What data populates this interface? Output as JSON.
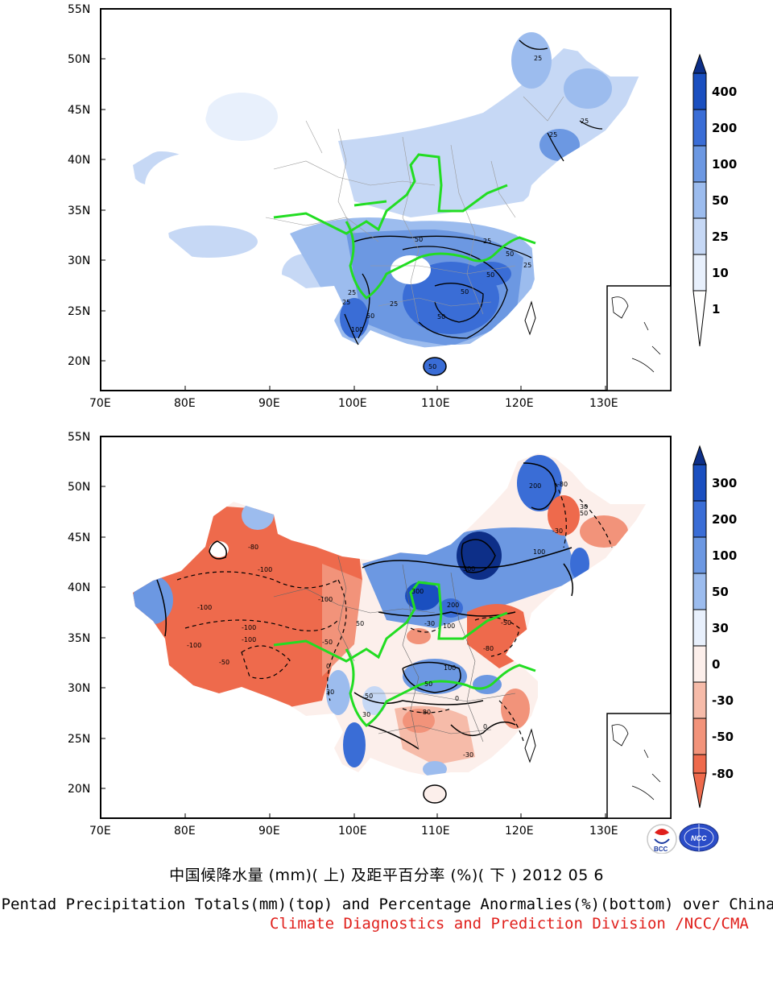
{
  "title_cn": "中国候降水量 (mm)( 上) 及距平百分率 (%)( 下 ) 2012 05 6",
  "title_en": "Pentad Precipitation Totals(mm)(top) and Percentage Anormalies(%)(bottom) over China",
  "credit": "Climate Diagnostics and Prediction Division /NCC/CMA",
  "logos": {
    "left": "BCC",
    "right": "NCC"
  },
  "axes": {
    "lat_labels": [
      "55N",
      "50N",
      "45N",
      "40N",
      "35N",
      "30N",
      "25N",
      "20N"
    ],
    "lon_labels": [
      "70E",
      "80E",
      "90E",
      "100E",
      "110E",
      "120E",
      "130E"
    ]
  },
  "colors": {
    "river": "#22dd22",
    "blue_levels": [
      "#ffffff",
      "#e8f0fc",
      "#c6d8f5",
      "#9cbcee",
      "#6c98e2",
      "#3a6dd6",
      "#1a4fc0",
      "#0d2f88"
    ],
    "red_levels": [
      "#fcefeb",
      "#f6bba9",
      "#f2937a",
      "#ee6a4c"
    ]
  },
  "top_map": {
    "colorbar_labels": [
      "400",
      "200",
      "100",
      "50",
      "25",
      "10",
      "1"
    ],
    "contour_labels": [
      "25",
      "25",
      "25",
      "25",
      "25",
      "25",
      "25",
      "25",
      "50",
      "50",
      "50",
      "50",
      "50",
      "50",
      "50",
      "100"
    ]
  },
  "bottom_map": {
    "colorbar_labels": [
      "300",
      "200",
      "100",
      "50",
      "30",
      "0",
      "-30",
      "-50",
      "-80"
    ],
    "contour_labels": [
      "-100",
      "-100",
      "-100",
      "-100",
      "-100",
      "-100",
      "-80",
      "-80",
      "-80",
      "-80",
      "-50",
      "-50",
      "-50",
      "-30",
      "-30",
      "-30",
      "0",
      "0",
      "0",
      "30",
      "30",
      "30",
      "50",
      "50",
      "50",
      "50",
      "100",
      "100",
      "100",
      "200",
      "200",
      "300",
      "300"
    ]
  }
}
